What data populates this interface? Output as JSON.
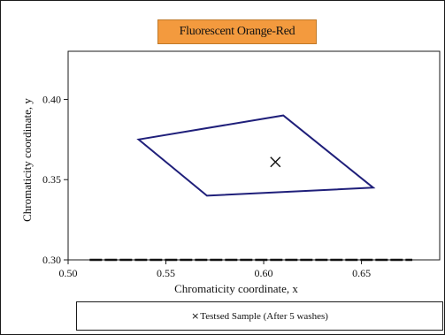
{
  "chart_data": {
    "type": "line",
    "title": "Fluorescent Orange-Red",
    "xlabel": "Chromaticity coordinate, x",
    "ylabel": "Chromaticity coordinate, y",
    "xlim": [
      0.5,
      0.69
    ],
    "ylim": [
      0.3,
      0.43
    ],
    "x_ticks": [
      0.5,
      0.55,
      0.6,
      0.65
    ],
    "x_tick_labels": [
      "0.50",
      "0.55",
      "0.60",
      "0.65"
    ],
    "y_ticks": [
      0.3,
      0.35,
      0.4
    ],
    "y_tick_labels": [
      "0.30",
      "0.35",
      "0.40"
    ],
    "grid": false,
    "series": [
      {
        "type": "polygon",
        "points": [
          {
            "x": 0.536,
            "y": 0.375
          },
          {
            "x": 0.61,
            "y": 0.39
          },
          {
            "x": 0.656,
            "y": 0.345
          },
          {
            "x": 0.571,
            "y": 0.34
          }
        ]
      },
      {
        "type": "scatter",
        "name": "Testsed Sample (After 5 washes)",
        "marker": "x",
        "points": [
          {
            "x": 0.606,
            "y": 0.361
          }
        ]
      }
    ],
    "legend": {
      "placement": "bottom",
      "marker_symbol": "×",
      "label": "Testsed Sample (After 5 washes)"
    },
    "colors": {
      "polygon": "#1f1f7a",
      "marker": "#111111",
      "title_background": "#f39a3e"
    }
  }
}
